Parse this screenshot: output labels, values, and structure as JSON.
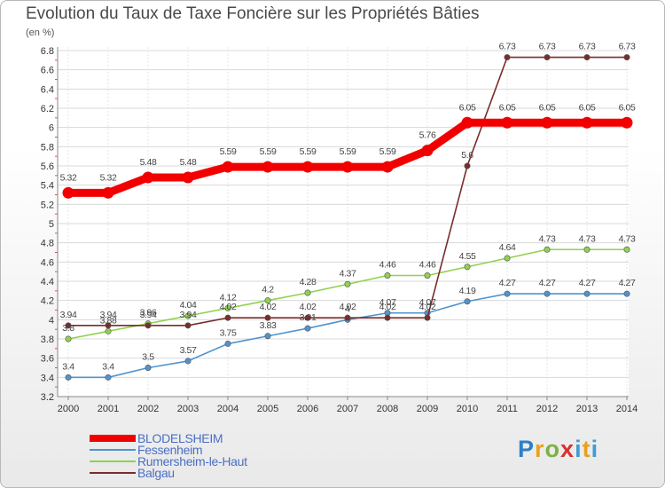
{
  "title": "Evolution du Taux de Taxe Foncière sur les Propriétés Bâties",
  "unit": "(en %)",
  "logo_text": "Proxiti",
  "chart_data": {
    "type": "line",
    "title": "Evolution du Taux de Taxe Foncière sur les Propriétés Bâties",
    "ylabel": "(en %)",
    "xlabel": "",
    "ylim": [
      3.2,
      6.8
    ],
    "yticks": [
      "3.2",
      "3.4",
      "3.6",
      "3.8",
      "4",
      "4.2",
      "4.4",
      "4.6",
      "4.8",
      "5",
      "5.2",
      "5.4",
      "5.6",
      "5.8",
      "6",
      "6.2",
      "6.4",
      "6.6",
      "6.8"
    ],
    "grid": true,
    "legend_position": "bottom-left",
    "x": [
      "2000",
      "2001",
      "2002",
      "2003",
      "2004",
      "2005",
      "2006",
      "2007",
      "2008",
      "2009",
      "2010",
      "2011",
      "2012",
      "2013",
      "2014"
    ],
    "series": [
      {
        "name": "BLODELSHEIM",
        "color": "#f20000",
        "values": [
          5.32,
          5.32,
          5.48,
          5.48,
          5.59,
          5.59,
          5.59,
          5.59,
          5.59,
          5.76,
          6.05,
          6.05,
          6.05,
          6.05,
          6.05
        ],
        "labels": [
          "5.32",
          "5.32",
          "5.48",
          "5.48",
          "5.59",
          "5.59",
          "5.59",
          "5.59",
          "5.59",
          "5.76",
          "6.05",
          "6.05",
          "6.05",
          "6.05",
          "6.05"
        ]
      },
      {
        "name": "Fessenheim",
        "color": "#4f94cf",
        "values": [
          3.4,
          3.4,
          3.5,
          3.57,
          3.75,
          3.83,
          3.91,
          4.0,
          4.07,
          4.07,
          4.19,
          4.27,
          4.27,
          4.27,
          4.27
        ],
        "labels": [
          "3.4",
          "3.4",
          "3.5",
          "3.57",
          "3.75",
          "3.83",
          "3.91",
          "4",
          "4.07",
          "4.07",
          "4.19",
          "4.27",
          "4.27",
          "4.27",
          "4.27"
        ]
      },
      {
        "name": "Rumersheim-le-Haut",
        "color": "#8fd24d",
        "values": [
          3.8,
          3.88,
          3.96,
          4.04,
          4.12,
          4.2,
          4.28,
          4.37,
          4.46,
          4.46,
          4.55,
          4.64,
          4.73,
          4.73,
          4.73
        ],
        "labels": [
          "3.8",
          "3.88",
          "3.96",
          "4.04",
          "4.12",
          "4.2",
          "4.28",
          "4.37",
          "4.46",
          "4.46",
          "4.55",
          "4.64",
          "4.73",
          "4.73",
          "4.73"
        ]
      },
      {
        "name": "Balgau",
        "color": "#7b2c2c",
        "values": [
          3.94,
          3.94,
          3.94,
          3.94,
          4.02,
          4.02,
          4.02,
          4.02,
          4.02,
          4.02,
          5.6,
          6.73,
          6.73,
          6.73,
          6.73
        ],
        "labels": [
          "3.94",
          "3.94",
          "3.94",
          "3.94",
          "4.02",
          "4.02",
          "4.02",
          "4.02",
          "4.02",
          "4.02",
          "5.6",
          "6.73",
          "6.73",
          "6.73",
          "6.73"
        ]
      }
    ]
  }
}
